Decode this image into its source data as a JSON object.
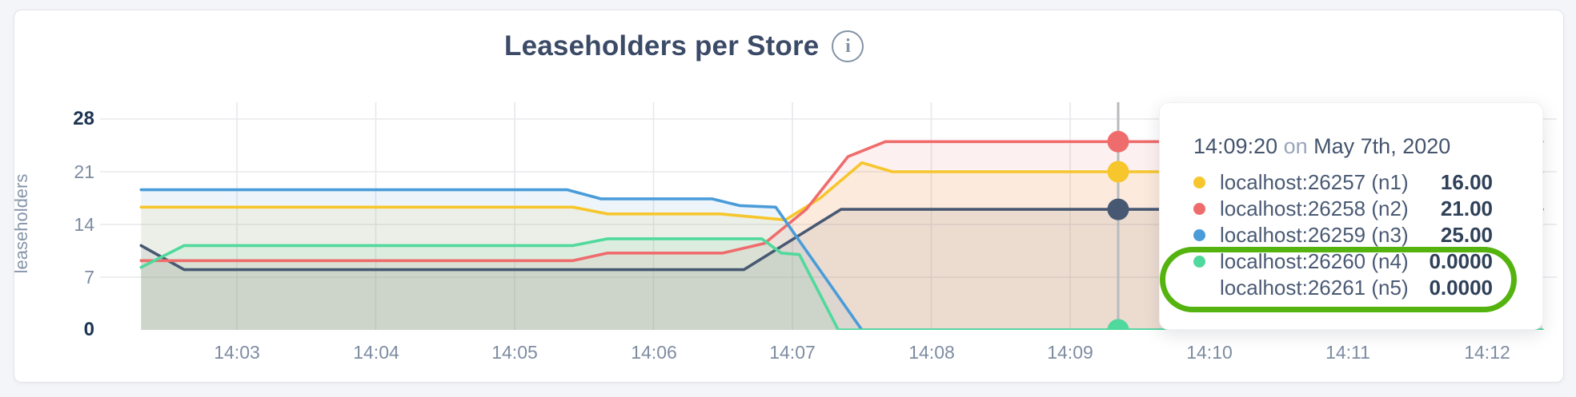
{
  "header": {
    "title": "Leaseholders per Store",
    "info_icon": "i"
  },
  "y_axis": {
    "label": "leaseholders",
    "tick_labels": [
      "28",
      "21",
      "14",
      "7",
      "0"
    ]
  },
  "x_axis": {
    "ticks": [
      "14:03",
      "14:04",
      "14:05",
      "14:06",
      "14:07",
      "14:08",
      "14:09",
      "14:10",
      "14:11",
      "14:12"
    ]
  },
  "tooltip": {
    "time": "14:09:20",
    "conjunction": " on ",
    "date": "May 7th, 2020",
    "rows": [
      {
        "label": "localhost:26257 (n1)",
        "value": "16.00",
        "color": "#475872",
        "highlighted": false
      },
      {
        "label": "localhost:26258 (n2)",
        "value": "21.00",
        "color": "#f6c62c",
        "highlighted": false
      },
      {
        "label": "localhost:26259 (n3)",
        "value": "25.00",
        "color": "#ef6c6c",
        "highlighted": false
      },
      {
        "label": "localhost:26260 (n4)",
        "value": "0.0000",
        "color": "#4a9cd9",
        "highlighted": true
      },
      {
        "label": "localhost:26261 (n5)",
        "value": "0.0000",
        "color": "#50d99c",
        "highlighted": true
      }
    ]
  },
  "annotation": {
    "shape": "ellipse-highlight",
    "color": "#55b30f"
  },
  "chart_data": {
    "type": "area",
    "title": "Leaseholders per Store",
    "xlabel": "",
    "ylabel": "leaseholders",
    "ylim": [
      0,
      28
    ],
    "y_ticks": [
      7,
      14,
      21,
      28
    ],
    "x_tick_labels": [
      "14:03",
      "14:04",
      "14:05",
      "14:06",
      "14:07",
      "14:08",
      "14:09",
      "14:10",
      "14:11",
      "14:12"
    ],
    "x_tick_minutes": [
      3,
      4,
      5,
      6,
      7,
      8,
      9,
      10,
      11,
      12
    ],
    "x_domain_minutes": [
      2.31,
      12.4
    ],
    "grid": true,
    "legend_position": "tooltip",
    "hover": {
      "t": 9.346,
      "label": "14:09:20 on May 7th, 2020"
    },
    "series": [
      {
        "name": "localhost:26257 (n1)",
        "color": "#475872",
        "hover_value": 16,
        "points": [
          [
            2.31,
            11.2
          ],
          [
            2.62,
            8
          ],
          [
            6.65,
            8
          ],
          [
            7.35,
            16
          ],
          [
            12.4,
            16
          ]
        ]
      },
      {
        "name": "localhost:26258 (n2)",
        "color": "#f6c62c",
        "hover_value": 21,
        "points": [
          [
            2.31,
            16.3
          ],
          [
            5.42,
            16.3
          ],
          [
            5.67,
            15.4
          ],
          [
            6.48,
            15.4
          ],
          [
            6.95,
            14.6
          ],
          [
            7.2,
            17.5
          ],
          [
            7.5,
            22.2
          ],
          [
            7.72,
            21
          ],
          [
            12.4,
            21
          ]
        ]
      },
      {
        "name": "localhost:26259 (n3)",
        "color": "#ef6c6c",
        "hover_value": 25,
        "points": [
          [
            2.31,
            9.2
          ],
          [
            5.42,
            9.2
          ],
          [
            5.67,
            10.2
          ],
          [
            6.5,
            10.2
          ],
          [
            6.8,
            11.5
          ],
          [
            7.1,
            16
          ],
          [
            7.4,
            23
          ],
          [
            7.67,
            25
          ],
          [
            12.4,
            25
          ]
        ]
      },
      {
        "name": "localhost:26260 (n4)",
        "color": "#4a9cd9",
        "hover_value": 0,
        "points": [
          [
            2.31,
            18.6
          ],
          [
            5.38,
            18.6
          ],
          [
            5.62,
            17.4
          ],
          [
            6.42,
            17.4
          ],
          [
            6.62,
            16.5
          ],
          [
            6.88,
            16.3
          ],
          [
            7.5,
            0
          ],
          [
            12.4,
            0
          ]
        ]
      },
      {
        "name": "localhost:26261 (n5)",
        "color": "#50d99c",
        "hover_value": 0,
        "points": [
          [
            2.31,
            8.3
          ],
          [
            2.62,
            11.2
          ],
          [
            5.42,
            11.2
          ],
          [
            5.67,
            12.1
          ],
          [
            6.78,
            12.1
          ],
          [
            6.92,
            10.2
          ],
          [
            7.05,
            10
          ],
          [
            7.33,
            0
          ],
          [
            12.4,
            0
          ]
        ]
      }
    ]
  }
}
